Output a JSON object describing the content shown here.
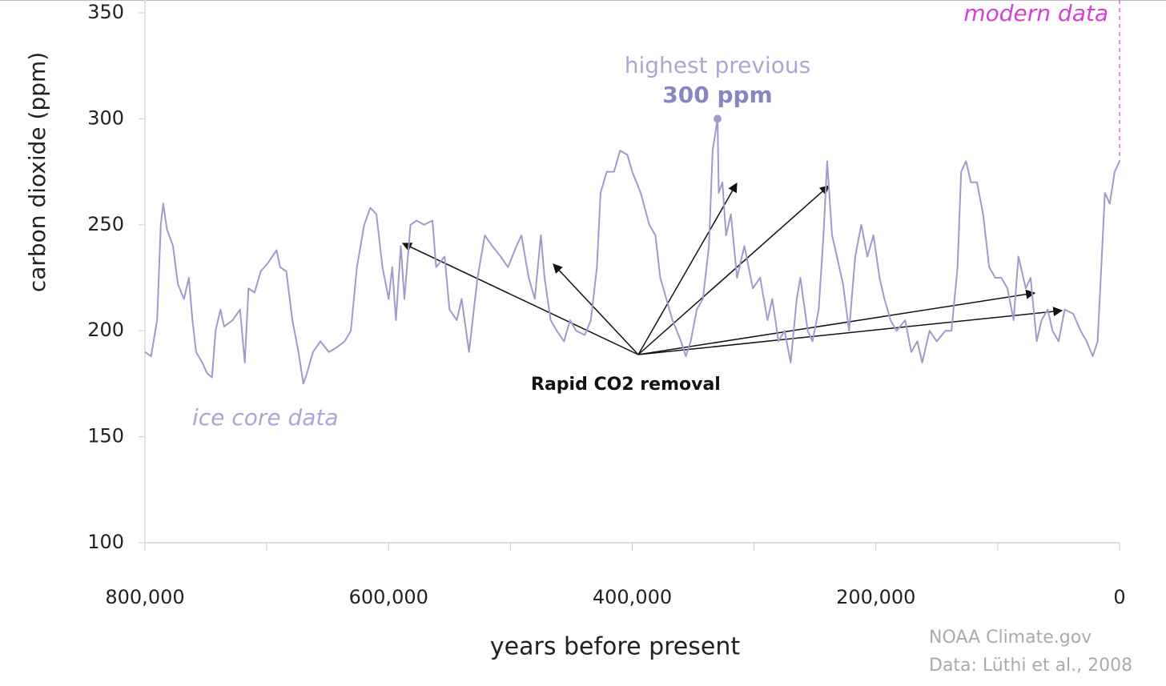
{
  "chart_data": {
    "type": "line",
    "x_label": "years before present",
    "y_label": "carbon dioxide (ppm)",
    "x": [
      800000,
      795000,
      790000,
      787000,
      785000,
      782000,
      777000,
      773000,
      768000,
      764000,
      761000,
      758000,
      753000,
      749000,
      745000,
      742000,
      738000,
      735000,
      728000,
      722000,
      718000,
      715000,
      710000,
      705000,
      699000,
      692000,
      689000,
      684000,
      679000,
      674000,
      670000,
      667000,
      662000,
      656000,
      649000,
      643000,
      636000,
      631000,
      626000,
      620000,
      615000,
      610000,
      605000,
      600000,
      597000,
      594000,
      590000,
      587000,
      582000,
      577000,
      571000,
      564000,
      561000,
      554000,
      550000,
      544000,
      540000,
      534000,
      531000,
      527000,
      521000,
      515000,
      508000,
      502000,
      495000,
      491000,
      485000,
      480000,
      475000,
      472000,
      467000,
      462000,
      456000,
      451000,
      446000,
      439000,
      434000,
      429000,
      426000,
      421000,
      415000,
      410000,
      404000,
      400000,
      393000,
      386000,
      381000,
      377000,
      372000,
      367000,
      360000,
      356000,
      352000,
      347000,
      342000,
      337000,
      334000,
      330000,
      329000,
      326000,
      323000,
      319000,
      314000,
      308000,
      301000,
      295000,
      289000,
      285000,
      280000,
      275000,
      270000,
      265000,
      262000,
      256000,
      252000,
      247000,
      243000,
      240000,
      236000,
      232000,
      227000,
      222000,
      217000,
      212000,
      207000,
      202000,
      197000,
      193000,
      188000,
      183000,
      176000,
      171000,
      166000,
      162000,
      156000,
      150000,
      143000,
      138000,
      133000,
      130000,
      126000,
      122000,
      117000,
      112000,
      107000,
      102000,
      97000,
      92000,
      87000,
      83000,
      77000,
      73000,
      68000,
      64000,
      59000,
      55000,
      50000,
      45000,
      38000,
      32000,
      27000,
      22000,
      18000,
      15000,
      12000,
      8000,
      4000,
      0
    ],
    "series": [
      {
        "name": "ice core data",
        "color": "#9d9ccc",
        "values": [
          190,
          188,
          205,
          250,
          260,
          248,
          240,
          222,
          215,
          225,
          205,
          190,
          185,
          180,
          178,
          200,
          210,
          202,
          205,
          210,
          185,
          220,
          218,
          228,
          232,
          238,
          230,
          228,
          205,
          190,
          175,
          180,
          190,
          195,
          190,
          192,
          195,
          200,
          230,
          250,
          258,
          255,
          230,
          215,
          230,
          205,
          240,
          215,
          250,
          252,
          250,
          252,
          230,
          235,
          210,
          205,
          215,
          190,
          205,
          225,
          245,
          240,
          235,
          230,
          240,
          245,
          225,
          215,
          245,
          225,
          205,
          200,
          195,
          205,
          200,
          198,
          205,
          230,
          265,
          275,
          275,
          285,
          283,
          275,
          265,
          250,
          245,
          225,
          215,
          205,
          195,
          188,
          195,
          210,
          215,
          240,
          285,
          300,
          265,
          270,
          245,
          255,
          225,
          240,
          220,
          225,
          205,
          215,
          195,
          200,
          185,
          215,
          225,
          200,
          195,
          210,
          245,
          280,
          245,
          235,
          222,
          200,
          235,
          250,
          235,
          245,
          225,
          215,
          205,
          200,
          205,
          190,
          195,
          185,
          200,
          195,
          200,
          200,
          230,
          275,
          280,
          270,
          270,
          255,
          230,
          225,
          225,
          220,
          205,
          235,
          220,
          225,
          195,
          205,
          210,
          200,
          195,
          210,
          208,
          200,
          195,
          188,
          195,
          230,
          265,
          260,
          275,
          280
        ]
      }
    ],
    "xlim": [
      800000,
      0
    ],
    "ylim": [
      100,
      350
    ],
    "xticks": [
      {
        "value": 800000,
        "label": "800,000"
      },
      {
        "value": 600000,
        "label": "600,000"
      },
      {
        "value": 400000,
        "label": "400,000"
      },
      {
        "value": 200000,
        "label": "200,000"
      },
      0
    ],
    "xminorticks": [
      700000,
      500000,
      300000,
      100000
    ],
    "yticks": [
      100,
      150,
      200,
      250,
      300,
      350
    ],
    "highlight": {
      "x": 330000,
      "value": 300,
      "title": "highest previous",
      "value_label": "300 ppm"
    },
    "modern": {
      "text": "modern data",
      "x": 0,
      "color": "#d63fd6"
    },
    "annotation": "Rapid CO2 removal",
    "source": [
      "NOAA Climate.gov",
      "Data: Lüthi et al., 2008"
    ]
  }
}
